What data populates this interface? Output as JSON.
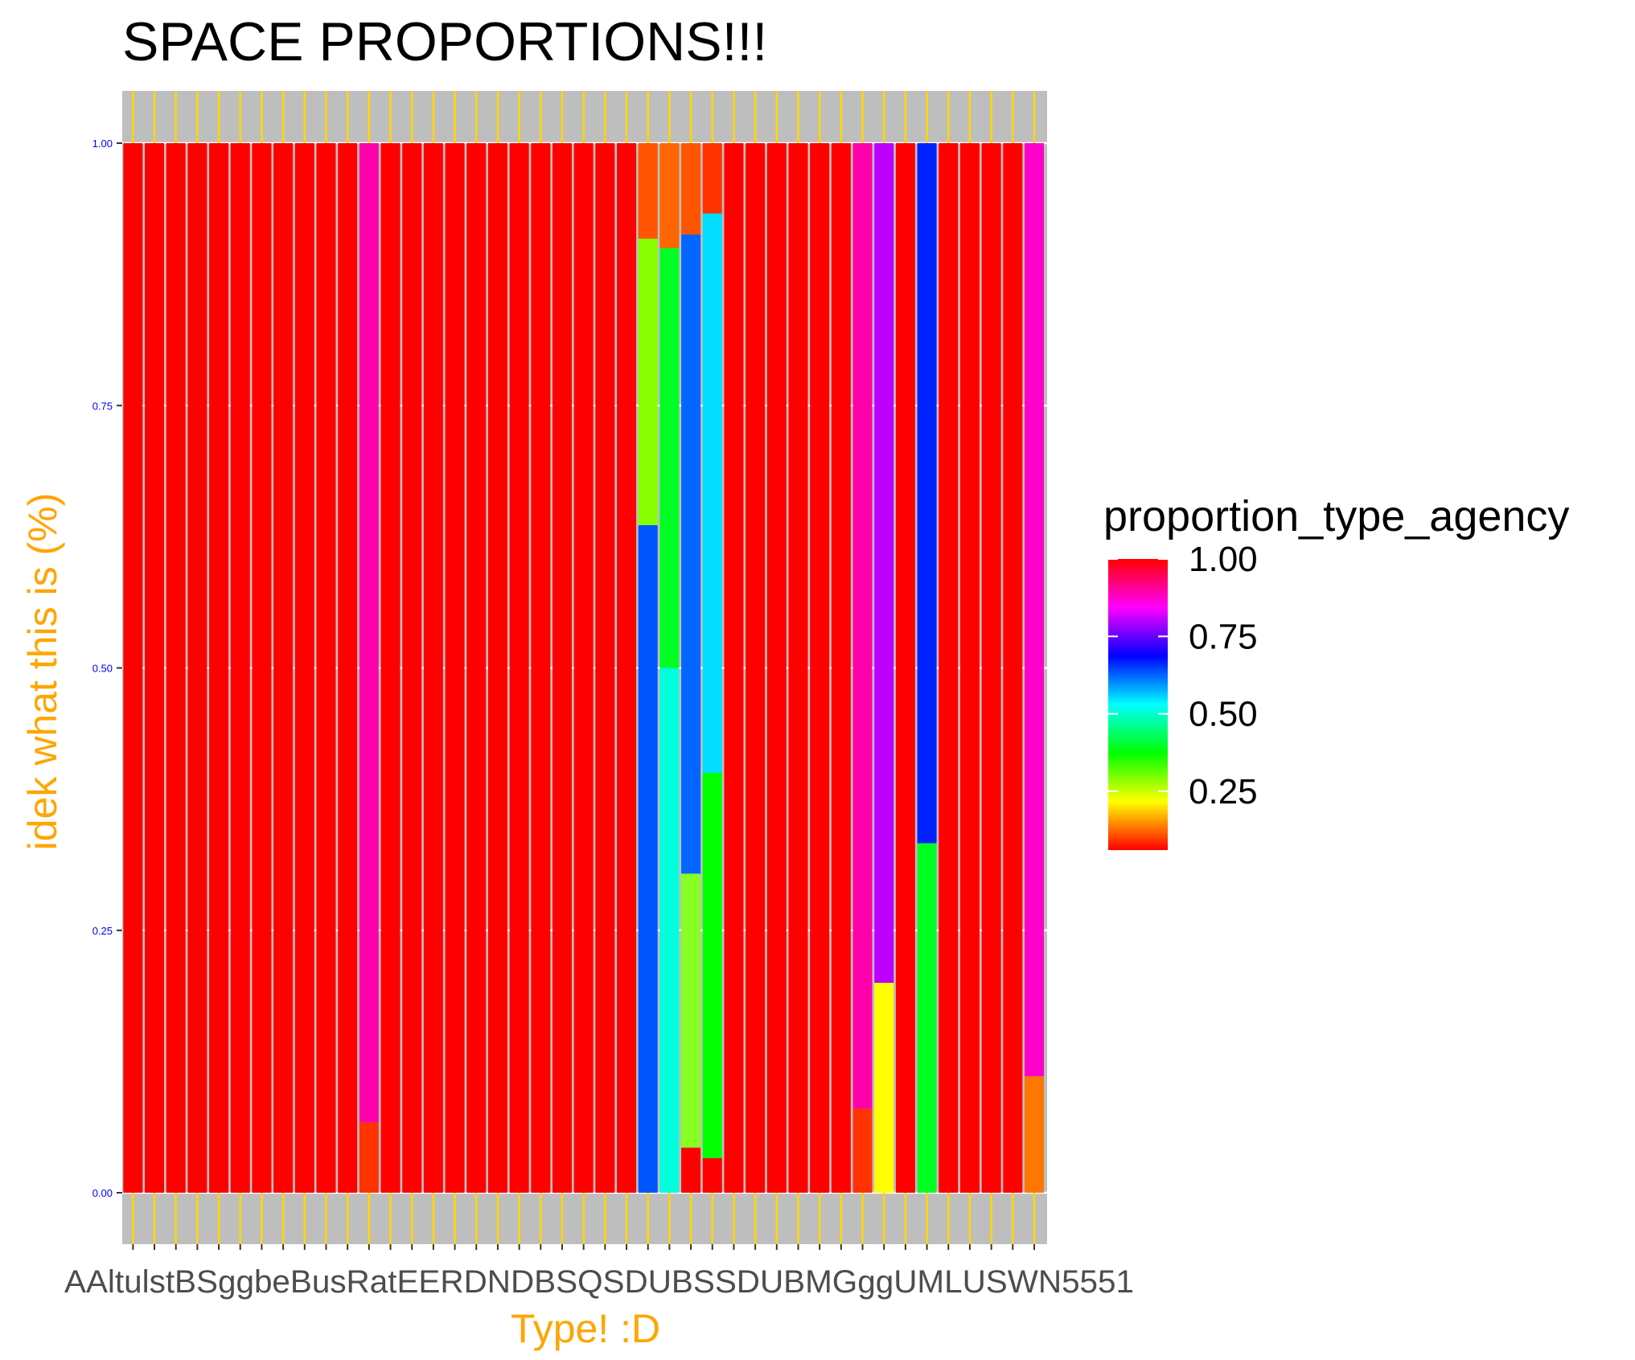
{
  "chart_data": {
    "type": "bar",
    "stacked": true,
    "title": "SPACE PROPORTIONS!!!",
    "xlabel": "Type! :D",
    "ylabel": "idek what this is (%)",
    "ylim": [
      0,
      1
    ],
    "y_ticks": [
      "0.00",
      "0.25",
      "0.50",
      "0.75",
      "1.00"
    ],
    "grid": true,
    "panel_background": "#BEBEBE",
    "grid_color": "#FFFFFF",
    "tick_color": "#FFD700",
    "category_count": 43,
    "x_tick_labels_overlapping": "AAltulstBSggbeBusRatEERDNDBSQSDUBSSDUBMGggUMLUSWN5551",
    "fill_scale": {
      "name": "proportion_type_agency",
      "breaks": [
        "0.25",
        "0.50",
        "0.75",
        "1.00"
      ],
      "colors": [
        "#FF0000",
        "#FFFF00",
        "#00FF00",
        "#00FFFF",
        "#0000FF",
        "#FF00FF",
        "#FF0000"
      ],
      "legend_placement": "right"
    },
    "stacks": [
      [
        [
          0,
          1,
          "#FF0000"
        ]
      ],
      [
        [
          0,
          1,
          "#FF0000"
        ]
      ],
      [
        [
          0,
          1,
          "#FF0000"
        ]
      ],
      [
        [
          0,
          1,
          "#FF0000"
        ]
      ],
      [
        [
          0,
          1,
          "#FF0000"
        ]
      ],
      [
        [
          0,
          1,
          "#FF0000"
        ]
      ],
      [
        [
          0,
          1,
          "#FF0000"
        ]
      ],
      [
        [
          0,
          1,
          "#FF0000"
        ]
      ],
      [
        [
          0,
          1,
          "#FF0000"
        ]
      ],
      [
        [
          0,
          1,
          "#FF0000"
        ]
      ],
      [
        [
          0,
          1,
          "#FF0000"
        ]
      ],
      [
        [
          0,
          0.067,
          "#FF3300"
        ],
        [
          0.067,
          1,
          "#FF00AA"
        ]
      ],
      [
        [
          0,
          1,
          "#FF0000"
        ]
      ],
      [
        [
          0,
          1,
          "#FF0000"
        ]
      ],
      [
        [
          0,
          1,
          "#FF0000"
        ]
      ],
      [
        [
          0,
          1,
          "#FF0000"
        ]
      ],
      [
        [
          0,
          1,
          "#FF0000"
        ]
      ],
      [
        [
          0,
          1,
          "#FF0000"
        ]
      ],
      [
        [
          0,
          1,
          "#FF0000"
        ]
      ],
      [
        [
          0,
          1,
          "#FF0000"
        ]
      ],
      [
        [
          0,
          1,
          "#FF0000"
        ]
      ],
      [
        [
          0,
          1,
          "#FF0000"
        ]
      ],
      [
        [
          0,
          1,
          "#FF0000"
        ]
      ],
      [
        [
          0,
          1,
          "#FF0000"
        ]
      ],
      [
        [
          0,
          0.636,
          "#0055FF"
        ],
        [
          0.636,
          0.909,
          "#88FF00"
        ],
        [
          0.909,
          1,
          "#FF5500"
        ]
      ],
      [
        [
          0,
          0.5,
          "#00FFDD"
        ],
        [
          0.5,
          0.9,
          "#00FF22"
        ],
        [
          0.9,
          1,
          "#FF6600"
        ]
      ],
      [
        [
          0,
          0.043,
          "#FF0000"
        ],
        [
          0.043,
          0.304,
          "#88FF22"
        ],
        [
          0.304,
          0.913,
          "#0066FF"
        ],
        [
          0.913,
          1,
          "#FF5500"
        ]
      ],
      [
        [
          0,
          0.033,
          "#FF0000"
        ],
        [
          0.033,
          0.4,
          "#00FF00"
        ],
        [
          0.4,
          0.933,
          "#00DDFF"
        ],
        [
          0.933,
          1,
          "#FF3300"
        ]
      ],
      [
        [
          0,
          1,
          "#FF0000"
        ]
      ],
      [
        [
          0,
          1,
          "#FF0000"
        ]
      ],
      [
        [
          0,
          1,
          "#FF0000"
        ]
      ],
      [
        [
          0,
          1,
          "#FF0000"
        ]
      ],
      [
        [
          0,
          1,
          "#FF0000"
        ]
      ],
      [
        [
          0,
          1,
          "#FF0000"
        ]
      ],
      [
        [
          0,
          0.08,
          "#FF3300"
        ],
        [
          0.08,
          1,
          "#FF00AA"
        ]
      ],
      [
        [
          0,
          0.2,
          "#FFFF00"
        ],
        [
          0.2,
          1,
          "#BB00FF"
        ]
      ],
      [
        [
          0,
          1,
          "#FF0000"
        ]
      ],
      [
        [
          0,
          0.333,
          "#00FF22"
        ],
        [
          0.333,
          1,
          "#0022FF"
        ]
      ],
      [
        [
          0,
          1,
          "#FF0000"
        ]
      ],
      [
        [
          0,
          1,
          "#FF0000"
        ]
      ],
      [
        [
          0,
          1,
          "#FF0000"
        ]
      ],
      [
        [
          0,
          1,
          "#FF0000"
        ]
      ],
      [
        [
          0,
          0.111,
          "#FF7700"
        ],
        [
          0.111,
          1,
          "#FF00CC"
        ]
      ]
    ]
  }
}
